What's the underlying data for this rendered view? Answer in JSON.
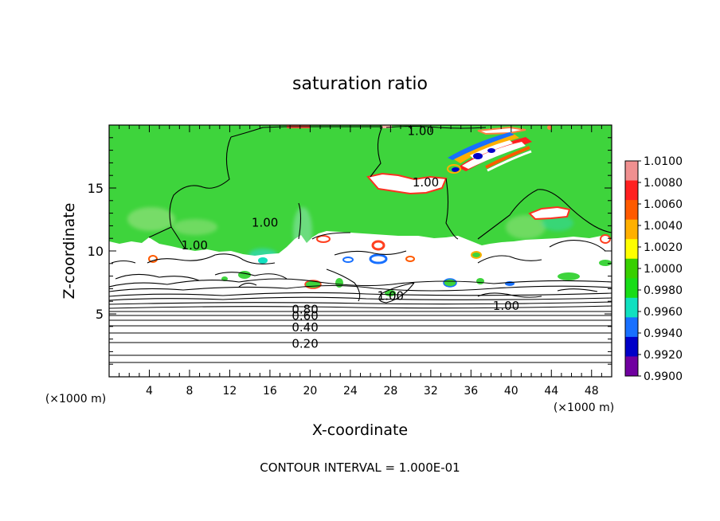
{
  "chart_data": {
    "type": "heatmap",
    "title": "saturation ratio",
    "xlabel": "X-coordinate",
    "ylabel": "Z-coordinate",
    "x_unit": "(×1000 m)",
    "y_unit": "(×1000 m)",
    "xlim": [
      0,
      50
    ],
    "ylim": [
      0,
      20
    ],
    "x_ticks": [
      "4",
      "8",
      "12",
      "16",
      "20",
      "24",
      "28",
      "32",
      "36",
      "40",
      "44",
      "48"
    ],
    "y_ticks": [
      "5",
      "10",
      "15"
    ],
    "footer": "CONTOUR INTERVAL = 1.000E-01",
    "colorbar": {
      "levels": [
        "1.0100",
        "1.0080",
        "1.0060",
        "1.0040",
        "1.0020",
        "1.0000",
        "0.9980",
        "0.9960",
        "0.9940",
        "0.9920",
        "0.9900"
      ],
      "colors": [
        "#f09090",
        "#ff2020",
        "#ff5a00",
        "#ffb000",
        "#ffff00",
        "#38d000",
        "#18dd18",
        "#10e0c0",
        "#1870ff",
        "#0000c8",
        "#7000a0"
      ]
    },
    "contour_labels": [
      {
        "text": "0.20",
        "x": 19.5,
        "y": 2.7
      },
      {
        "text": "0.40",
        "x": 19.5,
        "y": 4.0
      },
      {
        "text": "0.60",
        "x": 19.5,
        "y": 4.9
      },
      {
        "text": "0.80",
        "x": 19.5,
        "y": 5.4
      },
      {
        "text": "1.00",
        "x": 15.5,
        "y": 12.3
      },
      {
        "text": "1.00",
        "x": 8.5,
        "y": 10.5
      },
      {
        "text": "1.00",
        "x": 31.5,
        "y": 15.5
      },
      {
        "text": "1.00",
        "x": 31.0,
        "y": 19.6
      },
      {
        "text": "1.00",
        "x": 28.0,
        "y": 6.5
      },
      {
        "text": "1.00",
        "x": 39.5,
        "y": 5.7
      }
    ],
    "grid": false
  }
}
